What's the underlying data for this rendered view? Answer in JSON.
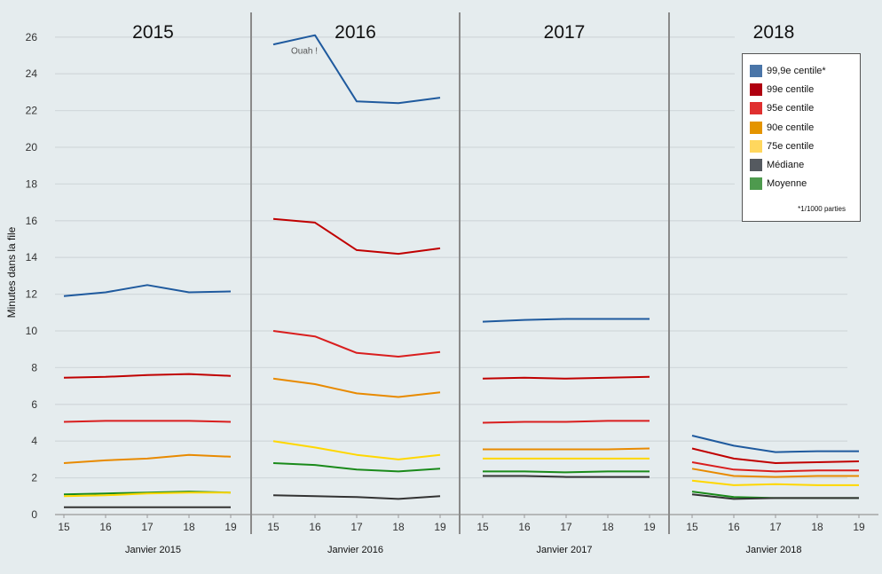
{
  "chart_data": {
    "type": "line",
    "ylabel": "Minutes dans la file",
    "ylim": [
      0,
      27
    ],
    "yticks": [
      0,
      2,
      4,
      6,
      8,
      10,
      12,
      14,
      16,
      18,
      20,
      22,
      24,
      26
    ],
    "grid": true,
    "legend_placement": "top-right",
    "x_tick_labels": [
      "15",
      "16",
      "17",
      "18",
      "19"
    ],
    "legend_note": "*1/1000 parties",
    "panels": [
      {
        "title": "2015",
        "xlabel": "Janvier 2015",
        "series": [
          {
            "name": "99,9e centile*",
            "color": "#1f5a9e",
            "values": [
              11.9,
              12.1,
              12.5,
              12.1,
              12.15
            ]
          },
          {
            "name": "99e centile",
            "color": "#c00000",
            "values": [
              7.45,
              7.5,
              7.6,
              7.65,
              7.55
            ]
          },
          {
            "name": "95e centile",
            "color": "#d91e1e",
            "values": [
              5.05,
              5.1,
              5.1,
              5.1,
              5.05
            ]
          },
          {
            "name": "90e centile",
            "color": "#e88a00",
            "values": [
              2.8,
              2.95,
              3.05,
              3.25,
              3.15
            ]
          },
          {
            "name": "75e centile",
            "color": "#ffd700",
            "values": [
              1.0,
              1.05,
              1.15,
              1.2,
              1.2
            ]
          },
          {
            "name": "Médiane",
            "color": "#333333",
            "values": [
              0.4,
              0.4,
              0.4,
              0.4,
              0.4
            ]
          },
          {
            "name": "Moyenne",
            "color": "#1a8a1a",
            "values": [
              1.1,
              1.15,
              1.2,
              1.25,
              1.2
            ]
          }
        ]
      },
      {
        "title": "2016",
        "xlabel": "Janvier 2016",
        "series": [
          {
            "name": "99,9e centile*",
            "color": "#1f5a9e",
            "values": [
              25.6,
              26.1,
              22.5,
              22.4,
              22.7
            ]
          },
          {
            "name": "99e centile",
            "color": "#c00000",
            "values": [
              16.1,
              15.9,
              14.4,
              14.2,
              14.5
            ]
          },
          {
            "name": "95e centile",
            "color": "#d91e1e",
            "values": [
              10.0,
              9.7,
              8.8,
              8.6,
              8.85
            ]
          },
          {
            "name": "90e centile",
            "color": "#e88a00",
            "values": [
              7.4,
              7.1,
              6.6,
              6.4,
              6.65
            ]
          },
          {
            "name": "75e centile",
            "color": "#ffd700",
            "values": [
              4.0,
              3.65,
              3.25,
              3.0,
              3.25
            ]
          },
          {
            "name": "Médiane",
            "color": "#333333",
            "values": [
              1.05,
              1.0,
              0.95,
              0.85,
              1.0
            ]
          },
          {
            "name": "Moyenne",
            "color": "#1a8a1a",
            "values": [
              2.8,
              2.7,
              2.45,
              2.35,
              2.5
            ]
          }
        ],
        "annotation": {
          "text": "Ouah !",
          "x": "16",
          "y": 25.3
        }
      },
      {
        "title": "2017",
        "xlabel": "Janvier 2017",
        "series": [
          {
            "name": "99,9e centile*",
            "color": "#1f5a9e",
            "values": [
              10.5,
              10.6,
              10.65,
              10.65,
              10.65
            ]
          },
          {
            "name": "99e centile",
            "color": "#c00000",
            "values": [
              7.4,
              7.45,
              7.4,
              7.45,
              7.5
            ]
          },
          {
            "name": "95e centile",
            "color": "#d91e1e",
            "values": [
              5.0,
              5.05,
              5.05,
              5.1,
              5.1
            ]
          },
          {
            "name": "90e centile",
            "color": "#e88a00",
            "values": [
              3.55,
              3.55,
              3.55,
              3.55,
              3.6
            ]
          },
          {
            "name": "75e centile",
            "color": "#ffd700",
            "values": [
              3.05,
              3.05,
              3.05,
              3.05,
              3.05
            ]
          },
          {
            "name": "Médiane",
            "color": "#333333",
            "values": [
              2.1,
              2.1,
              2.05,
              2.05,
              2.05
            ]
          },
          {
            "name": "Moyenne",
            "color": "#1a8a1a",
            "values": [
              2.35,
              2.35,
              2.3,
              2.35,
              2.35
            ]
          }
        ]
      },
      {
        "title": "2018",
        "xlabel": "Janvier 2018",
        "series": [
          {
            "name": "99,9e centile*",
            "color": "#1f5a9e",
            "values": [
              4.3,
              3.75,
              3.4,
              3.45,
              3.45
            ]
          },
          {
            "name": "99e centile",
            "color": "#c00000",
            "values": [
              3.6,
              3.05,
              2.8,
              2.85,
              2.9
            ]
          },
          {
            "name": "95e centile",
            "color": "#d91e1e",
            "values": [
              2.85,
              2.45,
              2.35,
              2.4,
              2.4
            ]
          },
          {
            "name": "90e centile",
            "color": "#e88a00",
            "values": [
              2.5,
              2.1,
              2.05,
              2.1,
              2.1
            ]
          },
          {
            "name": "75e centile",
            "color": "#ffd700",
            "values": [
              1.85,
              1.6,
              1.65,
              1.6,
              1.6
            ]
          },
          {
            "name": "Médiane",
            "color": "#333333",
            "values": [
              1.1,
              0.85,
              0.9,
              0.9,
              0.9
            ]
          },
          {
            "name": "Moyenne",
            "color": "#1a8a1a",
            "values": [
              1.25,
              0.95,
              0.9,
              0.9,
              0.9
            ]
          }
        ]
      }
    ]
  },
  "legend": {
    "items": [
      {
        "label": "99,9e centile*",
        "color": "#4a75a8"
      },
      {
        "label": "99e centile",
        "color": "#b00010"
      },
      {
        "label": "95e centile",
        "color": "#e03030"
      },
      {
        "label": "90e centile",
        "color": "#e49400"
      },
      {
        "label": "75e centile",
        "color": "#ffd75e"
      },
      {
        "label": "Médiane",
        "color": "#555a60"
      },
      {
        "label": "Moyenne",
        "color": "#4e9a4e"
      }
    ],
    "note": "*1/1000 parties"
  }
}
